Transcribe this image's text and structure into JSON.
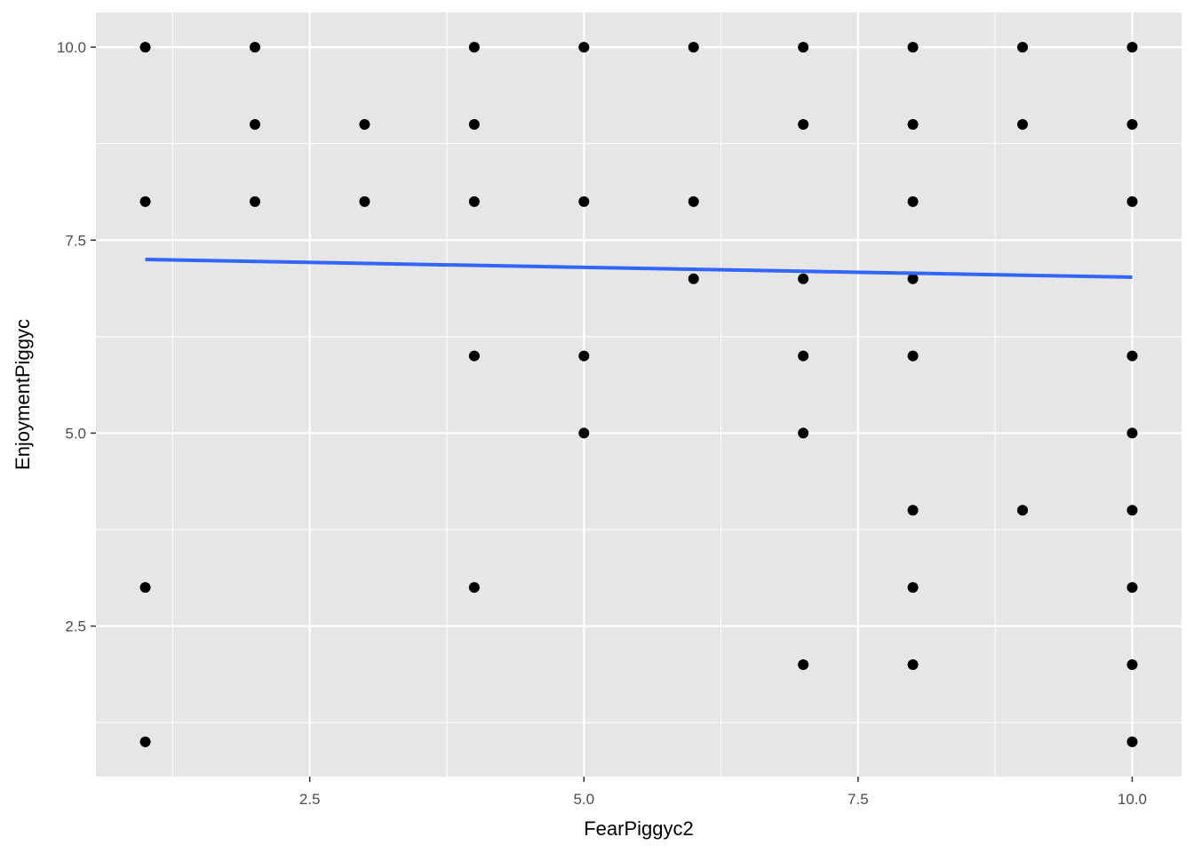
{
  "chart_data": {
    "type": "scatter",
    "title": "",
    "xlabel": "FearPiggyc2",
    "ylabel": "EnjoymentPiggyc",
    "xlim": [
      0.55,
      10.45
    ],
    "ylim": [
      0.55,
      10.45
    ],
    "xticks": [
      2.5,
      5.0,
      7.5,
      10.0
    ],
    "yticks": [
      2.5,
      5.0,
      7.5,
      10.0
    ],
    "xtick_labels": [
      "2.5",
      "5.0",
      "7.5",
      "10.0"
    ],
    "ytick_labels": [
      "2.5",
      "5.0",
      "7.5",
      "10.0"
    ],
    "grid": true,
    "background": "#e6e6e6",
    "point_color": "#000000",
    "points": [
      [
        1,
        10
      ],
      [
        1,
        8
      ],
      [
        1,
        3
      ],
      [
        1,
        1
      ],
      [
        2,
        10
      ],
      [
        2,
        9
      ],
      [
        2,
        8
      ],
      [
        3,
        9
      ],
      [
        3,
        8
      ],
      [
        4,
        10
      ],
      [
        4,
        9
      ],
      [
        4,
        8
      ],
      [
        4,
        6
      ],
      [
        4,
        3
      ],
      [
        5,
        10
      ],
      [
        5,
        8
      ],
      [
        5,
        6
      ],
      [
        5,
        5
      ],
      [
        6,
        10
      ],
      [
        6,
        8
      ],
      [
        6,
        7
      ],
      [
        7,
        10
      ],
      [
        7,
        9
      ],
      [
        7,
        7
      ],
      [
        7,
        6
      ],
      [
        7,
        5
      ],
      [
        7,
        2
      ],
      [
        8,
        10
      ],
      [
        8,
        9
      ],
      [
        8,
        8
      ],
      [
        8,
        7
      ],
      [
        8,
        6
      ],
      [
        8,
        4
      ],
      [
        8,
        3
      ],
      [
        8,
        2
      ],
      [
        9,
        10
      ],
      [
        9,
        9
      ],
      [
        9,
        4
      ],
      [
        10,
        10
      ],
      [
        10,
        9
      ],
      [
        10,
        8
      ],
      [
        10,
        6
      ],
      [
        10,
        5
      ],
      [
        10,
        4
      ],
      [
        10,
        3
      ],
      [
        10,
        2
      ],
      [
        10,
        1
      ]
    ],
    "fit_line": {
      "type": "linear",
      "color": "#3366ff",
      "x": [
        1,
        10
      ],
      "y": [
        7.25,
        7.02
      ]
    }
  }
}
